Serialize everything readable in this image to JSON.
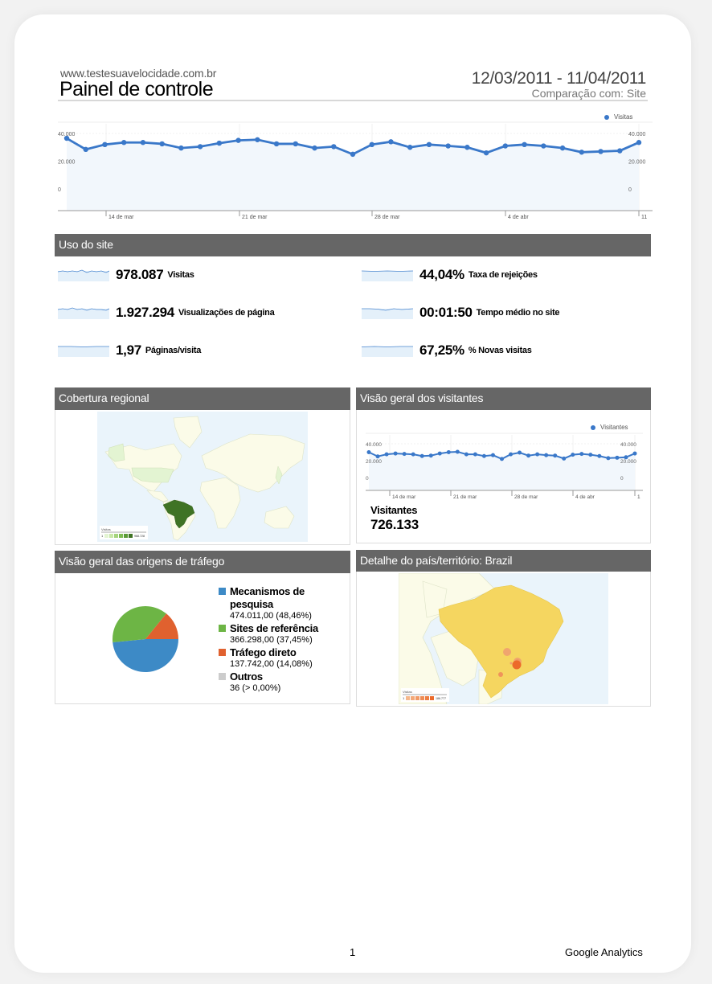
{
  "header": {
    "site_url": "www.testesuavelocidade.com.br",
    "title": "Painel de controle",
    "date_range": "12/03/2011 - 11/04/2011",
    "comparison": "Comparação com: Site"
  },
  "main_chart": {
    "legend": "Visitas",
    "y_ticks_left": [
      "40.000",
      "20.000",
      "0"
    ],
    "y_ticks_right": [
      "40.000",
      "20.000",
      "0"
    ],
    "x_ticks": [
      "14 de mar",
      "21 de mar",
      "28 de mar",
      "4 de abr",
      "11"
    ],
    "line_color": "#3a78c9"
  },
  "site_usage": {
    "title": "Uso do site",
    "metrics": [
      {
        "value": "978.087",
        "label": "Visitas"
      },
      {
        "value": "1.927.294",
        "label": "Visualizações de página"
      },
      {
        "value": "1,97",
        "label": "Páginas/visita"
      },
      {
        "value": "44,04%",
        "label": "Taxa de rejeições"
      },
      {
        "value": "00:01:50",
        "label": "Tempo médio no site"
      },
      {
        "value": "67,25%",
        "label": "% Novas visitas"
      }
    ]
  },
  "regional": {
    "title": "Cobertura regional",
    "legend_title": "Visitas",
    "legend_min": "1",
    "legend_max": "968.728"
  },
  "visitors": {
    "title": "Visão geral dos visitantes",
    "legend": "Visitantes",
    "y_ticks_left": [
      "40.000",
      "20.000",
      "0"
    ],
    "y_ticks_right": [
      "40.000",
      "20.000",
      "0"
    ],
    "x_ticks": [
      "14 de mar",
      "21 de mar",
      "28 de mar",
      "4 de abr",
      "1"
    ],
    "metric_label": "Visitantes",
    "metric_value": "726.133"
  },
  "traffic": {
    "title": "Visão geral das origens de tráfego",
    "items": [
      {
        "name": "Mecanismos de pesquisa",
        "value": "474.011,00 (48,46%)",
        "color": "#3d8ac6"
      },
      {
        "name": "Sites de referência",
        "value": "366.298,00 (37,45%)",
        "color": "#6db545"
      },
      {
        "name": "Tráfego direto",
        "value": "137.742,00 (14,08%)",
        "color": "#e0612f"
      },
      {
        "name": "Outros",
        "value": "36 (> 0,00%)",
        "color": "#cccccc"
      }
    ]
  },
  "country": {
    "title": "Detalhe do país/território: Brazil",
    "legend_title": "Visitas",
    "legend_min": "1",
    "legend_max": "186.777"
  },
  "footer": {
    "page_number": "1",
    "brand": "Google Analytics"
  },
  "chart_data": [
    {
      "type": "line",
      "title": "Visitas",
      "x": [
        "12/03",
        "13/03",
        "14/03",
        "15/03",
        "16/03",
        "17/03",
        "18/03",
        "19/03",
        "20/03",
        "21/03",
        "22/03",
        "23/03",
        "24/03",
        "25/03",
        "26/03",
        "27/03",
        "28/03",
        "29/03",
        "30/03",
        "31/03",
        "01/04",
        "02/04",
        "03/04",
        "04/04",
        "05/04",
        "06/04",
        "07/04",
        "08/04",
        "09/04",
        "10/04",
        "11/04"
      ],
      "series": [
        {
          "name": "Visitas",
          "values": [
            36500,
            28500,
            32000,
            33500,
            33500,
            32500,
            29500,
            30500,
            33000,
            35000,
            35500,
            32500,
            32500,
            29500,
            30500,
            25000,
            32000,
            34000,
            30000,
            32000,
            31000,
            30000,
            26000,
            31000,
            32000,
            31000,
            29500,
            26500,
            27000,
            27500,
            33500
          ]
        }
      ],
      "xlabel": "",
      "ylabel": "",
      "x_tick_labels": [
        "14 de mar",
        "21 de mar",
        "28 de mar",
        "4 de abr",
        "11"
      ],
      "ylim": [
        0,
        40000
      ],
      "grid": true,
      "legend_position": "top-right"
    },
    {
      "type": "line",
      "title": "Visitantes",
      "x": [
        "12/03",
        "13/03",
        "14/03",
        "15/03",
        "16/03",
        "17/03",
        "18/03",
        "19/03",
        "20/03",
        "21/03",
        "22/03",
        "23/03",
        "24/03",
        "25/03",
        "26/03",
        "27/03",
        "28/03",
        "29/03",
        "30/03",
        "31/03",
        "01/04",
        "02/04",
        "03/04",
        "04/04",
        "05/04",
        "06/04",
        "07/04",
        "08/04",
        "09/04",
        "10/04",
        "11/04"
      ],
      "series": [
        {
          "name": "Visitantes",
          "values": [
            30000,
            25000,
            27500,
            28500,
            28000,
            27500,
            25500,
            26000,
            28500,
            30000,
            30500,
            27500,
            27500,
            25500,
            26500,
            22000,
            27500,
            29500,
            26000,
            27500,
            26500,
            26000,
            22500,
            27000,
            28000,
            27000,
            25500,
            23000,
            23500,
            24000,
            28500
          ]
        }
      ],
      "x_tick_labels": [
        "14 de mar",
        "21 de mar",
        "28 de mar",
        "4 de abr",
        "1"
      ],
      "ylim": [
        0,
        40000
      ],
      "grid": true,
      "legend_position": "top-right"
    },
    {
      "type": "pie",
      "title": "Visão geral das origens de tráfego",
      "categories": [
        "Mecanismos de pesquisa",
        "Sites de referência",
        "Tráfego direto",
        "Outros"
      ],
      "values": [
        474011,
        366298,
        137742,
        36
      ],
      "percentages": [
        48.46,
        37.45,
        14.08,
        0.0
      ],
      "legend_position": "right"
    }
  ]
}
